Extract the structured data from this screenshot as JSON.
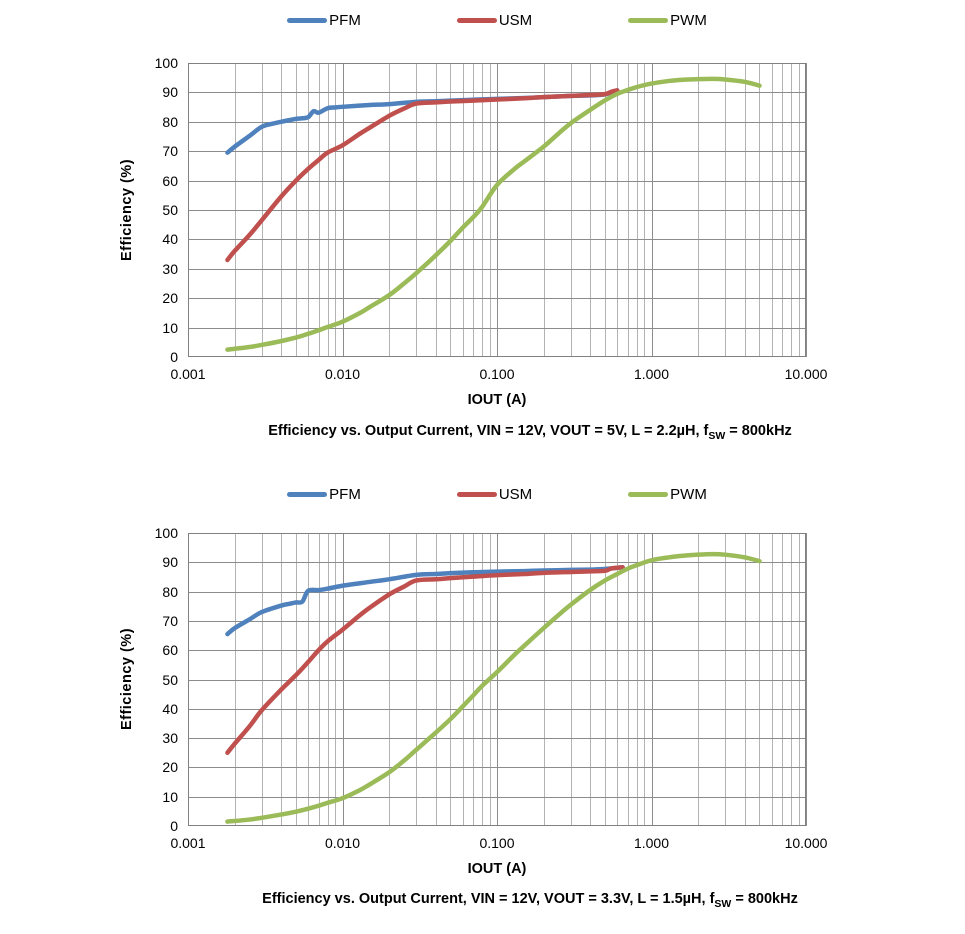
{
  "colors": {
    "pfm_blue": "#4F81BD",
    "usm_red": "#C0504D",
    "pwm_green": "#9BBB59",
    "grid_minor": "#b3b3b3",
    "grid_major": "#8c8c8c",
    "plot_border": "#808080",
    "text": "#000000"
  },
  "chart_data": [
    {
      "type": "line",
      "title": "Efficiency vs. Output Current, VIN = 12V, VOUT = 5V, L = 2.2µH, fSW = 800kHz",
      "caption_pre": "Efficiency vs. Output Current, VIN = 12V, VOUT = 5V, L = 2.2µH, f",
      "caption_sub": "SW",
      "caption_post": " = 800kHz",
      "xlabel": "IOUT (A)",
      "ylabel": "Efficiency (%)",
      "x_scale": "log",
      "xlim": [
        0.001,
        10
      ],
      "ylim": [
        0,
        100
      ],
      "grid": "major-and-log-minor",
      "legend_position": "top",
      "xtick_labels": [
        "0.001",
        "0.010",
        "0.100",
        "1.000",
        "10.000"
      ],
      "xtick_values": [
        0.001,
        0.01,
        0.1,
        1,
        10
      ],
      "ytick_step": 10,
      "ytick_labels": [
        "0",
        "10",
        "20",
        "30",
        "40",
        "50",
        "60",
        "70",
        "80",
        "90",
        "100"
      ],
      "series": [
        {
          "name": "PFM",
          "color": "#4F81BD",
          "points": [
            [
              0.0018,
              69.5
            ],
            [
              0.002,
              71.5
            ],
            [
              0.0025,
              75.2
            ],
            [
              0.003,
              78.3
            ],
            [
              0.0035,
              79.3
            ],
            [
              0.004,
              80.0
            ],
            [
              0.005,
              81.0
            ],
            [
              0.0055,
              81.2
            ],
            [
              0.006,
              81.6
            ],
            [
              0.0065,
              83.6
            ],
            [
              0.007,
              83.1
            ],
            [
              0.008,
              84.6
            ],
            [
              0.009,
              84.9
            ],
            [
              0.01,
              85.1
            ],
            [
              0.015,
              85.7
            ],
            [
              0.02,
              86.0
            ],
            [
              0.03,
              86.8
            ],
            [
              0.04,
              87.0
            ],
            [
              0.05,
              87.2
            ],
            [
              0.07,
              87.5
            ],
            [
              0.1,
              87.8
            ],
            [
              0.15,
              88.1
            ],
            [
              0.2,
              88.4
            ],
            [
              0.3,
              88.8
            ],
            [
              0.4,
              89.0
            ],
            [
              0.5,
              89.3
            ],
            [
              0.6,
              90.7
            ]
          ]
        },
        {
          "name": "USM",
          "color": "#C0504D",
          "points": [
            [
              0.0018,
              33
            ],
            [
              0.002,
              36
            ],
            [
              0.0025,
              41.5
            ],
            [
              0.003,
              46.5
            ],
            [
              0.004,
              54.5
            ],
            [
              0.005,
              60
            ],
            [
              0.006,
              64
            ],
            [
              0.007,
              67
            ],
            [
              0.008,
              69.5
            ],
            [
              0.01,
              72
            ],
            [
              0.013,
              76
            ],
            [
              0.015,
              78
            ],
            [
              0.02,
              82
            ],
            [
              0.025,
              84.5
            ],
            [
              0.03,
              86.2
            ],
            [
              0.04,
              86.6
            ],
            [
              0.05,
              86.9
            ],
            [
              0.07,
              87.2
            ],
            [
              0.1,
              87.6
            ],
            [
              0.15,
              88.0
            ],
            [
              0.2,
              88.4
            ],
            [
              0.3,
              88.8
            ],
            [
              0.4,
              89.1
            ],
            [
              0.5,
              89.4
            ],
            [
              0.55,
              90.2
            ],
            [
              0.6,
              90.7
            ]
          ]
        },
        {
          "name": "PWM",
          "color": "#9BBB59",
          "points": [
            [
              0.0018,
              2.5
            ],
            [
              0.0025,
              3.4
            ],
            [
              0.003,
              4.1
            ],
            [
              0.004,
              5.4
            ],
            [
              0.005,
              6.6
            ],
            [
              0.006,
              7.9
            ],
            [
              0.007,
              9.1
            ],
            [
              0.008,
              10.2
            ],
            [
              0.01,
              12
            ],
            [
              0.013,
              15
            ],
            [
              0.015,
              17
            ],
            [
              0.02,
              21
            ],
            [
              0.025,
              25
            ],
            [
              0.03,
              28.5
            ],
            [
              0.04,
              34.5
            ],
            [
              0.05,
              39.5
            ],
            [
              0.06,
              44
            ],
            [
              0.07,
              47.5
            ],
            [
              0.08,
              51
            ],
            [
              0.1,
              58.5
            ],
            [
              0.13,
              64
            ],
            [
              0.15,
              66.5
            ],
            [
              0.2,
              71.5
            ],
            [
              0.25,
              76
            ],
            [
              0.3,
              79.5
            ],
            [
              0.4,
              84
            ],
            [
              0.5,
              87.3
            ],
            [
              0.6,
              89.5
            ],
            [
              0.7,
              90.8
            ],
            [
              0.8,
              91.8
            ],
            [
              1,
              93
            ],
            [
              1.3,
              93.9
            ],
            [
              1.5,
              94.2
            ],
            [
              2,
              94.5
            ],
            [
              2.5,
              94.6
            ],
            [
              3,
              94.4
            ],
            [
              4,
              93.6
            ],
            [
              5,
              92.3
            ]
          ]
        }
      ]
    },
    {
      "type": "line",
      "title": "Efficiency vs. Output Current, VIN = 12V, VOUT = 3.3V, L = 1.5µH, fSW = 800kHz",
      "caption_pre": "Efficiency vs. Output Current, VIN = 12V, VOUT = 3.3V, L = 1.5µH, f",
      "caption_sub": "SW",
      "caption_post": " = 800kHz",
      "xlabel": "IOUT (A)",
      "ylabel": "Efficiency (%)",
      "x_scale": "log",
      "xlim": [
        0.001,
        10
      ],
      "ylim": [
        0,
        100
      ],
      "grid": "major-and-log-minor",
      "legend_position": "top",
      "xtick_labels": [
        "0.001",
        "0.010",
        "0.100",
        "1.000",
        "10.000"
      ],
      "xtick_values": [
        0.001,
        0.01,
        0.1,
        1,
        10
      ],
      "ytick_step": 10,
      "ytick_labels": [
        "0",
        "10",
        "20",
        "30",
        "40",
        "50",
        "60",
        "70",
        "80",
        "90",
        "100"
      ],
      "series": [
        {
          "name": "PFM",
          "color": "#4F81BD",
          "points": [
            [
              0.0018,
              65.5
            ],
            [
              0.002,
              67.5
            ],
            [
              0.0025,
              70.5
            ],
            [
              0.003,
              73
            ],
            [
              0.004,
              75.2
            ],
            [
              0.0045,
              75.8
            ],
            [
              0.005,
              76.3
            ],
            [
              0.0055,
              76.6
            ],
            [
              0.006,
              80.3
            ],
            [
              0.007,
              80.5
            ],
            [
              0.008,
              81
            ],
            [
              0.01,
              82
            ],
            [
              0.015,
              83.3
            ],
            [
              0.02,
              84.2
            ],
            [
              0.03,
              85.7
            ],
            [
              0.04,
              86
            ],
            [
              0.05,
              86.3
            ],
            [
              0.07,
              86.6
            ],
            [
              0.1,
              86.8
            ],
            [
              0.15,
              87
            ],
            [
              0.2,
              87.2
            ],
            [
              0.3,
              87.4
            ],
            [
              0.4,
              87.5
            ],
            [
              0.5,
              87.7
            ],
            [
              0.65,
              88.3
            ]
          ]
        },
        {
          "name": "USM",
          "color": "#C0504D",
          "points": [
            [
              0.0018,
              25
            ],
            [
              0.002,
              28
            ],
            [
              0.0025,
              34
            ],
            [
              0.003,
              39.5
            ],
            [
              0.004,
              46.5
            ],
            [
              0.005,
              51.5
            ],
            [
              0.006,
              56
            ],
            [
              0.007,
              60
            ],
            [
              0.008,
              63
            ],
            [
              0.01,
              67
            ],
            [
              0.013,
              72
            ],
            [
              0.015,
              74.5
            ],
            [
              0.02,
              79
            ],
            [
              0.025,
              81.7
            ],
            [
              0.03,
              83.8
            ],
            [
              0.04,
              84.2
            ],
            [
              0.05,
              84.6
            ],
            [
              0.07,
              85.1
            ],
            [
              0.1,
              85.6
            ],
            [
              0.15,
              86
            ],
            [
              0.2,
              86.4
            ],
            [
              0.3,
              86.7
            ],
            [
              0.4,
              86.9
            ],
            [
              0.5,
              87.1
            ],
            [
              0.55,
              87.9
            ],
            [
              0.65,
              88.3
            ]
          ]
        },
        {
          "name": "PWM",
          "color": "#9BBB59",
          "points": [
            [
              0.0018,
              1.5
            ],
            [
              0.0025,
              2.2
            ],
            [
              0.003,
              2.8
            ],
            [
              0.004,
              3.9
            ],
            [
              0.005,
              4.9
            ],
            [
              0.006,
              5.9
            ],
            [
              0.007,
              6.9
            ],
            [
              0.008,
              7.9
            ],
            [
              0.01,
              9.5
            ],
            [
              0.013,
              12.3
            ],
            [
              0.015,
              14.2
            ],
            [
              0.02,
              18.3
            ],
            [
              0.025,
              22.3
            ],
            [
              0.03,
              26
            ],
            [
              0.04,
              31.8
            ],
            [
              0.05,
              36.5
            ],
            [
              0.06,
              40.8
            ],
            [
              0.07,
              44.5
            ],
            [
              0.08,
              47.8
            ],
            [
              0.1,
              52.5
            ],
            [
              0.13,
              58.5
            ],
            [
              0.15,
              61.5
            ],
            [
              0.2,
              67.5
            ],
            [
              0.25,
              72
            ],
            [
              0.3,
              75.5
            ],
            [
              0.4,
              80.5
            ],
            [
              0.5,
              83.8
            ],
            [
              0.6,
              86
            ],
            [
              0.7,
              87.8
            ],
            [
              0.8,
              89
            ],
            [
              1,
              90.7
            ],
            [
              1.3,
              91.7
            ],
            [
              1.5,
              92.1
            ],
            [
              2,
              92.6
            ],
            [
              2.5,
              92.8
            ],
            [
              3,
              92.6
            ],
            [
              4,
              91.7
            ],
            [
              5,
              90.4
            ]
          ]
        }
      ]
    }
  ]
}
